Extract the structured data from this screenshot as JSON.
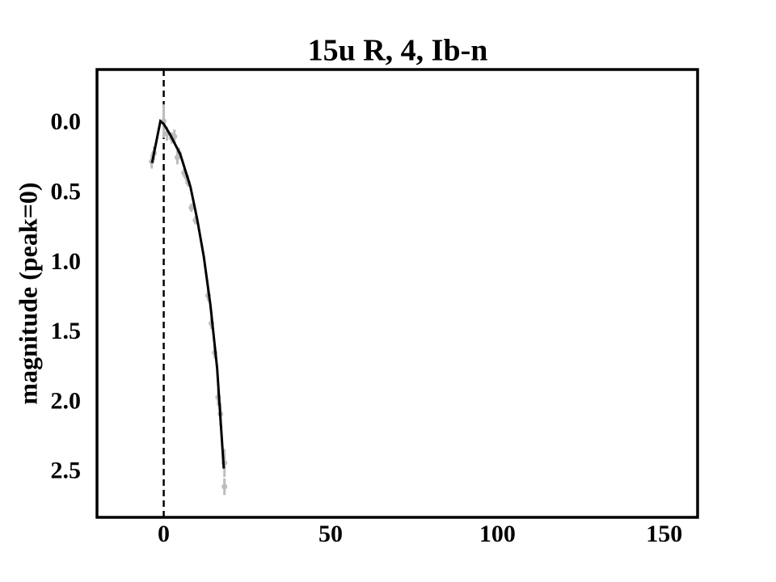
{
  "chart_data": {
    "type": "line",
    "title": "15u R, 4, Ib-n",
    "y_label": "magnitude (peak=0)",
    "xlim": [
      -20,
      160
    ],
    "ylim": [
      -0.39,
      2.82
    ],
    "y_inverted": true,
    "xticks": [
      0,
      50,
      100,
      150
    ],
    "yticks": [
      {
        "value": 0,
        "label": "0.0"
      },
      0.5,
      {
        "value": 1,
        "label": "1.0"
      },
      1.5,
      {
        "value": 2,
        "label": "2.0"
      },
      2.5
    ],
    "vline": 0,
    "series": [
      {
        "color": "#bdbdbd",
        "markers": true,
        "x": [
          -3.6,
          -2.9,
          0,
          1,
          2.4,
          3.2,
          4.1,
          4.6,
          6.1,
          6.8,
          7.3,
          8.3,
          9.5,
          13.3,
          14.3,
          15.3,
          16.3,
          17,
          18.2,
          18.2
        ],
        "values": [
          0.27,
          0.21,
          -0.02,
          0.07,
          0.1,
          0.09,
          0.24,
          0.21,
          0.35,
          0.38,
          0.42,
          0.6,
          0.69,
          1.23,
          1.43,
          1.64,
          1.96,
          2.08,
          2.43,
          2.6
        ],
        "errors": [
          0.05,
          0.05,
          0.12,
          0.05,
          0.04,
          0.05,
          0.05,
          0.04,
          0.03,
          0.03,
          0.03,
          0.03,
          0.03,
          0.04,
          0.04,
          0.04,
          0.06,
          0.08,
          0.1,
          0.06
        ]
      },
      {
        "color": "#000000",
        "x": [
          -3.5,
          -2,
          -1,
          0,
          2,
          5,
          8,
          10,
          12,
          14,
          16,
          18
        ],
        "values": [
          0.28,
          0.1,
          -0.02,
          0,
          0.08,
          0.22,
          0.45,
          0.68,
          0.95,
          1.3,
          1.75,
          2.47
        ]
      }
    ]
  }
}
